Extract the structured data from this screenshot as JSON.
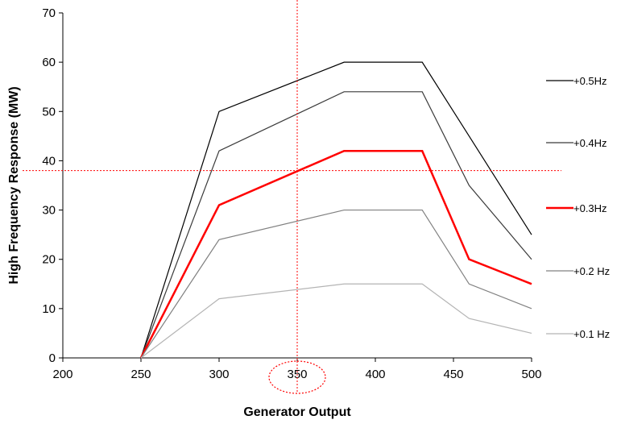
{
  "chart_data": {
    "type": "line",
    "title": "",
    "xlabel": "Generator Output",
    "ylabel": "High Frequency Response (MW)",
    "xlim": [
      200,
      500
    ],
    "ylim": [
      0,
      70
    ],
    "x_ticks": [
      200,
      250,
      300,
      350,
      400,
      450,
      500
    ],
    "y_ticks": [
      0,
      10,
      20,
      30,
      40,
      50,
      60,
      70
    ],
    "grid": false,
    "legend_placement": "right",
    "x": [
      250,
      300,
      380,
      430,
      460,
      500
    ],
    "series": [
      {
        "name": "+0.5Hz",
        "color": "#000000",
        "width": 1.2,
        "values": [
          0,
          50,
          60,
          60,
          45,
          25
        ]
      },
      {
        "name": "+0.4Hz",
        "color": "#3a3a3a",
        "width": 1.2,
        "values": [
          0,
          42,
          54,
          54,
          35,
          20
        ]
      },
      {
        "name": "+0.3Hz",
        "color": "#ff0000",
        "width": 2.5,
        "values": [
          0,
          31,
          42,
          42,
          20,
          15
        ]
      },
      {
        "name": "+0.2 Hz",
        "color": "#808080",
        "width": 1.2,
        "values": [
          0,
          24,
          30,
          30,
          15,
          10
        ]
      },
      {
        "name": "+0.1 Hz",
        "color": "#b4b4b4",
        "width": 1.2,
        "values": [
          0,
          12,
          15,
          15,
          8,
          5
        ]
      }
    ],
    "annotations": {
      "crosshair_x": 350,
      "crosshair_y": 38,
      "crosshair_color": "#ff0000",
      "circled_tick": 350
    }
  }
}
